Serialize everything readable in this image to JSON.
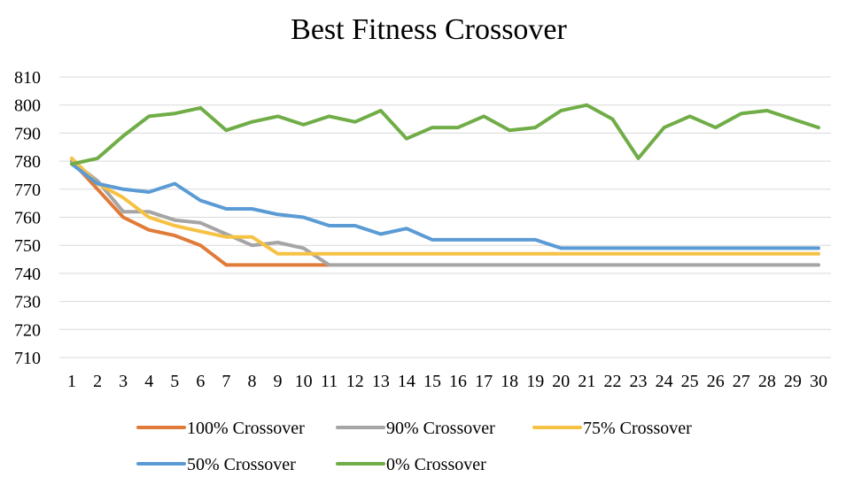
{
  "chart_data": {
    "type": "line",
    "title": "Best Fitness Crossover",
    "xlabel": "",
    "ylabel": "",
    "x": [
      1,
      2,
      3,
      4,
      5,
      6,
      7,
      8,
      9,
      10,
      11,
      12,
      13,
      14,
      15,
      16,
      17,
      18,
      19,
      20,
      21,
      22,
      23,
      24,
      25,
      26,
      27,
      28,
      29,
      30
    ],
    "ylim": [
      710,
      810
    ],
    "yticks": [
      710,
      720,
      730,
      740,
      750,
      760,
      770,
      780,
      790,
      800,
      810
    ],
    "grid": true,
    "legend_position": "bottom",
    "series": [
      {
        "name": "100% Crossover",
        "color": "#E07B39",
        "values": [
          780,
          770,
          760,
          755.5,
          753.5,
          750,
          743,
          743,
          743,
          743,
          743,
          null,
          null,
          null,
          null,
          null,
          null,
          null,
          null,
          null,
          null,
          null,
          null,
          null,
          null,
          null,
          null,
          null,
          null,
          null
        ]
      },
      {
        "name": "90% Crossover",
        "color": "#A5A5A5",
        "values": [
          780,
          773,
          762,
          762,
          759,
          758,
          754,
          750,
          751,
          749,
          743,
          743,
          743,
          743,
          743,
          743,
          743,
          743,
          743,
          743,
          743,
          743,
          743,
          743,
          743,
          743,
          743,
          743,
          743,
          743
        ]
      },
      {
        "name": "75% Crossover",
        "color": "#F6C244",
        "values": [
          781,
          772,
          767,
          760,
          757,
          755,
          753,
          753,
          747,
          747,
          747,
          747,
          747,
          747,
          747,
          747,
          747,
          747,
          747,
          747,
          747,
          747,
          747,
          747,
          747,
          747,
          747,
          747,
          747,
          747
        ]
      },
      {
        "name": "50% Crossover",
        "color": "#5B9BD5",
        "values": [
          779,
          772,
          770,
          769,
          772,
          766,
          763,
          763,
          761,
          760,
          757,
          757,
          754,
          756,
          752,
          752,
          752,
          752,
          752,
          749,
          749,
          749,
          749,
          749,
          749,
          749,
          749,
          749,
          749,
          749
        ]
      },
      {
        "name": "0% Crossover",
        "color": "#70AD47",
        "values": [
          779,
          781,
          789,
          796,
          797,
          799,
          791,
          794,
          796,
          793,
          796,
          794,
          798,
          788,
          792,
          792,
          796,
          791,
          792,
          798,
          800,
          795,
          781,
          792,
          796,
          792,
          797,
          798,
          795,
          792
        ]
      }
    ]
  }
}
